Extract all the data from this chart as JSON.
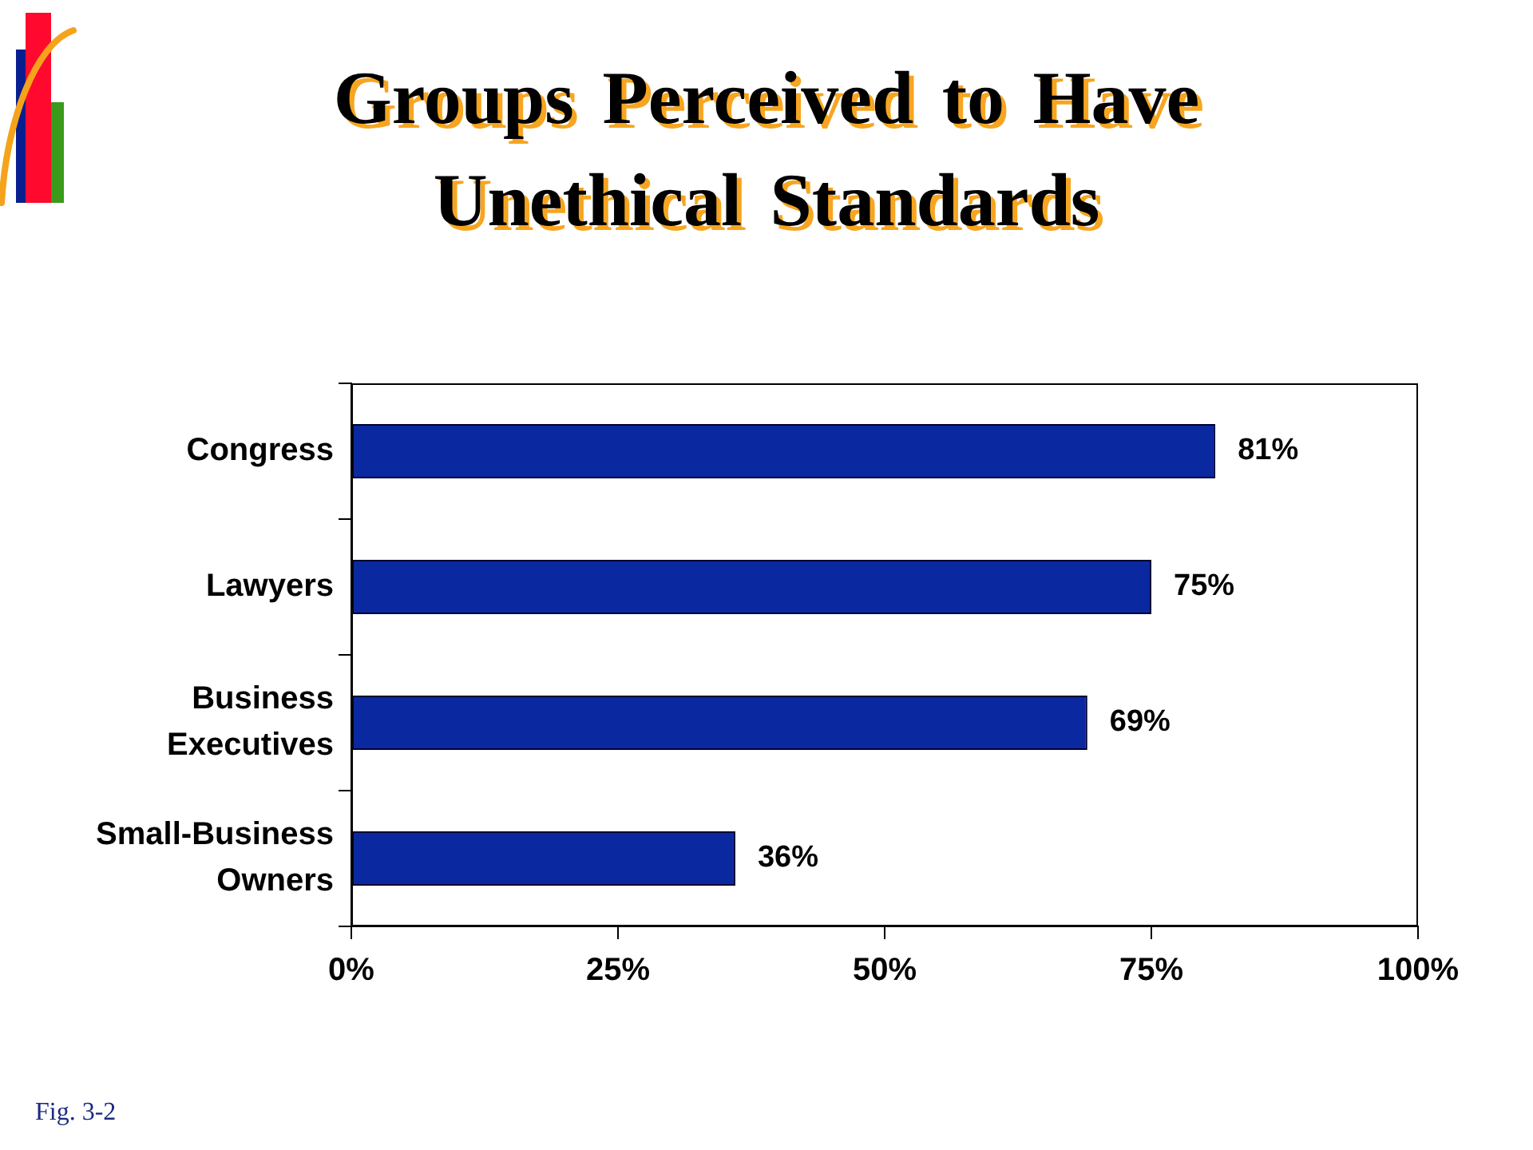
{
  "chart_data": {
    "type": "bar",
    "orientation": "horizontal",
    "title": "Groups Perceived to Have Unethical Standards",
    "categories": [
      "Congress",
      "Lawyers",
      "Business Executives",
      "Small-Business Owners"
    ],
    "values": [
      81,
      75,
      69,
      36
    ],
    "color": "#0a28a0",
    "value_labels": [
      "81%",
      "75%",
      "69%",
      "36%"
    ],
    "xlim": [
      0,
      100
    ],
    "xticks": [
      {
        "value": 0,
        "label": "0%"
      },
      {
        "value": 25,
        "label": "25%"
      },
      {
        "value": 50,
        "label": "50%"
      },
      {
        "value": 75,
        "label": "75%"
      },
      {
        "value": 100,
        "label": "100%"
      }
    ],
    "annotations": [
      "Fig. 3-2"
    ]
  }
}
